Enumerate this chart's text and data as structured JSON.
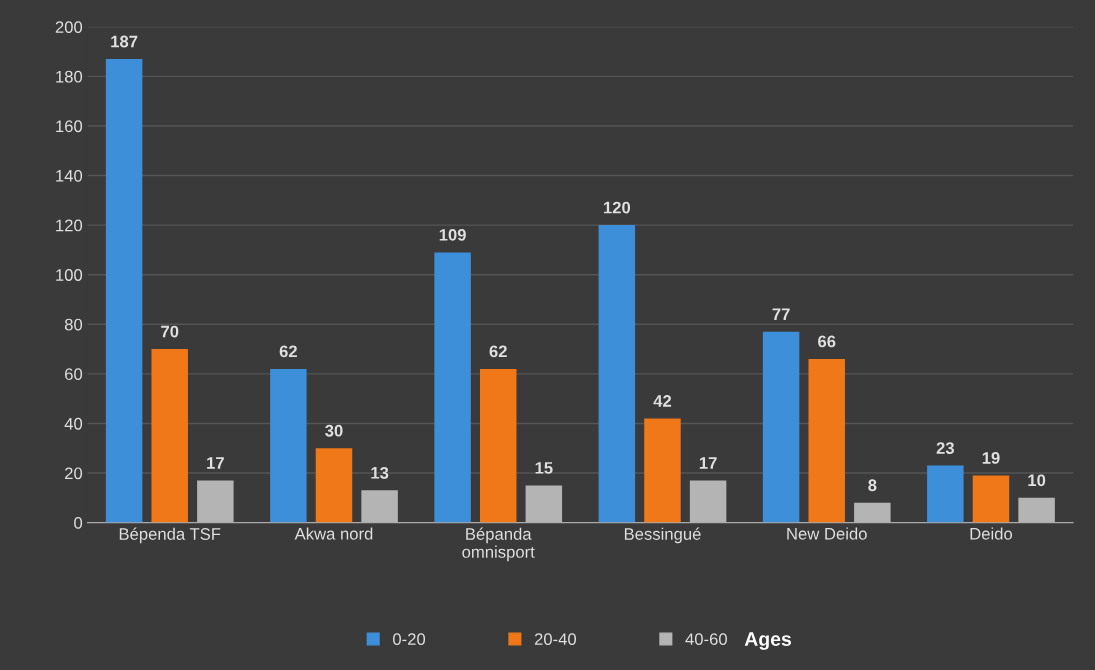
{
  "chart_data": {
    "type": "bar",
    "categories": [
      "Bépenda TSF",
      "Akwa nord",
      "Bépanda\nomnisport",
      "Bessingué",
      "New Deido",
      "Deido"
    ],
    "series": [
      {
        "name": "0-20",
        "color": "#3d8fd9",
        "values": [
          187,
          62,
          109,
          120,
          77,
          23
        ]
      },
      {
        "name": "20-40",
        "color": "#f07818",
        "values": [
          70,
          30,
          62,
          42,
          66,
          19
        ]
      },
      {
        "name": "40-60",
        "color": "#b4b4b4",
        "values": [
          17,
          13,
          15,
          17,
          8,
          10
        ]
      }
    ],
    "legend_title": "Ages",
    "legend": "bottom",
    "data_labels": true,
    "grid": "y",
    "ylim": [
      0,
      200
    ],
    "yticks": [
      0,
      20,
      40,
      60,
      80,
      100,
      120,
      140,
      160,
      180,
      200
    ]
  }
}
